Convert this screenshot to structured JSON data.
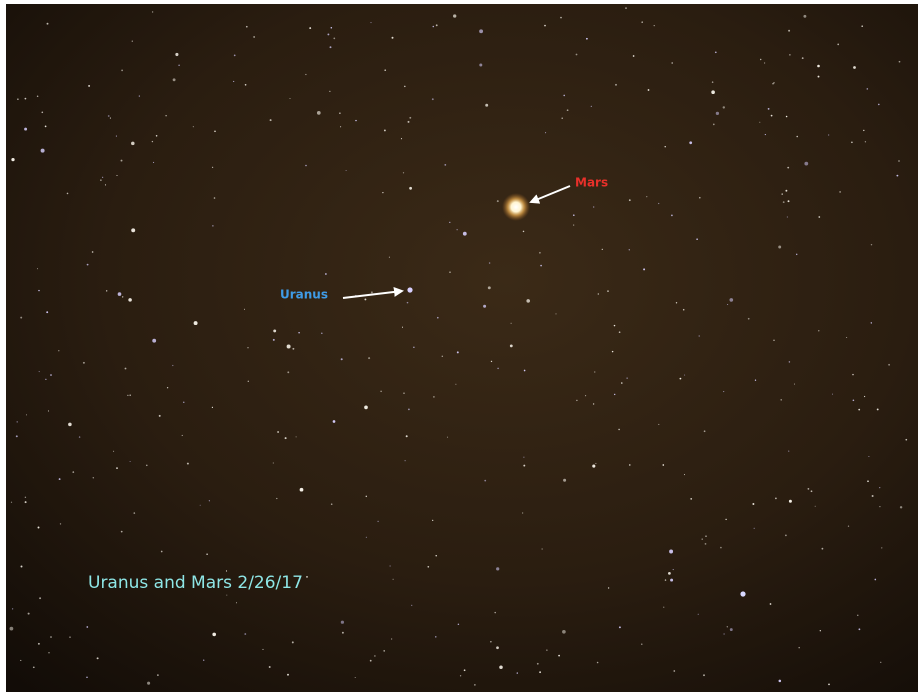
{
  "labels": {
    "mars": "Mars",
    "uranus": "Uranus"
  },
  "caption": "Uranus and Mars 2/26/17"
}
